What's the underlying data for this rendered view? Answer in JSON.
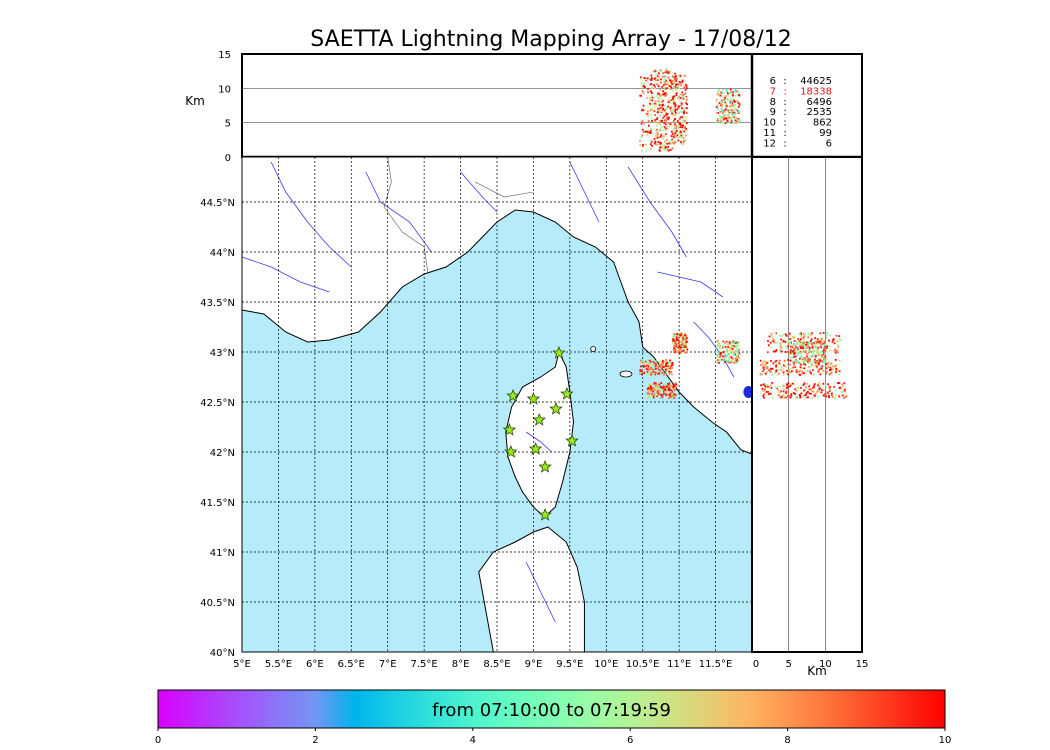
{
  "chart_data": {
    "type": "scatter",
    "title": "SAETTA Lightning Mapping Array - 17/08/12",
    "altitude_axis": {
      "label": "Km",
      "range": [
        0,
        15
      ],
      "ticks": [
        "0",
        "5",
        "10",
        "15"
      ]
    },
    "longitude_axis": {
      "range": [
        5,
        12.0
      ],
      "ticks": [
        "5°E",
        "5.5°E",
        "6°E",
        "6.5°E",
        "7°E",
        "7.5°E",
        "8°E",
        "8.5°E",
        "9°E",
        "9.5°E",
        "10°E",
        "10.5°E",
        "11°E",
        "11.5°E"
      ]
    },
    "latitude_axis": {
      "range": [
        40,
        44.95
      ],
      "ticks": [
        "40°N",
        "40.5°N",
        "41°N",
        "41.5°N",
        "42°N",
        "42.5°N",
        "43°N",
        "43.5°N",
        "44°N",
        "44.5°N"
      ]
    },
    "grid": true,
    "station_counts": [
      {
        "stations": "6",
        "count": "44625",
        "color": "#000000"
      },
      {
        "stations": "7",
        "count": "18338",
        "color": "#e8141b"
      },
      {
        "stations": "8",
        "count": "6496",
        "color": "#000000"
      },
      {
        "stations": "9",
        "count": "2535",
        "color": "#000000"
      },
      {
        "stations": "10",
        "count": "862",
        "color": "#000000"
      },
      {
        "stations": "11",
        "count": "99",
        "color": "#000000"
      },
      {
        "stations": "12",
        "count": "6",
        "color": "#000000"
      }
    ],
    "stations": [
      {
        "lon": 9.35,
        "lat": 42.99
      },
      {
        "lon": 8.72,
        "lat": 42.56
      },
      {
        "lon": 9.0,
        "lat": 42.53
      },
      {
        "lon": 9.46,
        "lat": 42.58
      },
      {
        "lon": 9.31,
        "lat": 42.43
      },
      {
        "lon": 9.08,
        "lat": 42.32
      },
      {
        "lon": 8.67,
        "lat": 42.22
      },
      {
        "lon": 9.53,
        "lat": 42.11
      },
      {
        "lon": 9.03,
        "lat": 42.03
      },
      {
        "lon": 8.69,
        "lat": 42.0
      },
      {
        "lon": 9.16,
        "lat": 41.85
      },
      {
        "lon": 9.16,
        "lat": 41.37
      }
    ],
    "lightning_clusters": [
      {
        "lon_range": [
          10.45,
          10.9
        ],
        "lat_range": [
          42.78,
          42.93
        ],
        "alt_range": [
          1,
          12
        ],
        "color_value": 8.5
      },
      {
        "lon_range": [
          10.55,
          10.95
        ],
        "lat_range": [
          42.55,
          42.7
        ],
        "alt_range": [
          1,
          13
        ],
        "color_value": 8.7
      },
      {
        "lon_range": [
          10.9,
          11.1
        ],
        "lat_range": [
          43.0,
          43.2
        ],
        "alt_range": [
          2,
          12
        ],
        "color_value": 8.4
      },
      {
        "lon_range": [
          11.5,
          11.82
        ],
        "lat_range": [
          42.9,
          43.12
        ],
        "alt_range": [
          5,
          10
        ],
        "color_value": 7.2
      }
    ],
    "colorbar": {
      "label": "from 07:10:00 to 07:19:59",
      "ticks": [
        "0",
        "2",
        "4",
        "6",
        "8",
        "10"
      ],
      "range": [
        0,
        10
      ]
    },
    "side_axis_label": "Km",
    "map_colors": {
      "sea": "#b6ecfa",
      "land": "#ffffff",
      "rivers": "#3a3af0",
      "coast": "#000000"
    }
  }
}
